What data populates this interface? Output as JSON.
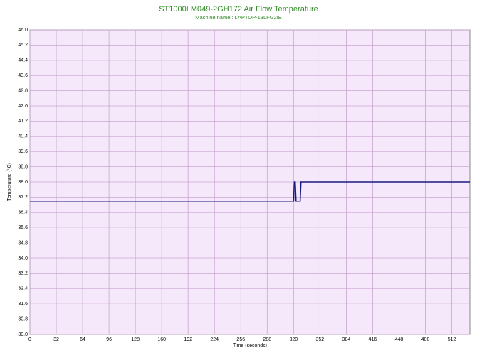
{
  "chart_data": {
    "type": "line",
    "title": "ST1000LM049-2GH172 Air Flow Temperature",
    "subtitle": "Machine name : LAPTOP-13LFG2IE",
    "x_label": "Time (seconds)",
    "y_label": "Temperature (°C)",
    "x": [
      0,
      320,
      321,
      322,
      323,
      328,
      329,
      534
    ],
    "series": [
      {
        "name": "Air Flow Temperature",
        "color": "#1a1a80",
        "values": [
          37.0,
          37.0,
          38.0,
          38.0,
          37.0,
          37.0,
          38.0,
          38.0
        ]
      }
    ],
    "xlim": [
      0,
      534
    ],
    "xticks": [
      0,
      32,
      64,
      96,
      128,
      160,
      192,
      224,
      256,
      288,
      320,
      352,
      384,
      416,
      448,
      480,
      512
    ],
    "ylim": [
      30,
      46
    ],
    "yticks": [
      {
        "value": 30,
        "label": "30.0"
      },
      {
        "value": 30.8,
        "label": "30.8"
      },
      {
        "value": 31.6,
        "label": "31.6"
      },
      {
        "value": 32.4,
        "label": "32.4"
      },
      {
        "value": 33.2,
        "label": "33.2"
      },
      {
        "value": 34,
        "label": "34.0"
      },
      {
        "value": 34.8,
        "label": "34.8"
      },
      {
        "value": 35.6,
        "label": "35.6"
      },
      {
        "value": 36.4,
        "label": "36.4"
      },
      {
        "value": 37.2,
        "label": "37.2"
      },
      {
        "value": 38,
        "label": "38.0"
      },
      {
        "value": 38.8,
        "label": "38.8"
      },
      {
        "value": 39.6,
        "label": "39.6"
      },
      {
        "value": 40.4,
        "label": "40.4"
      },
      {
        "value": 41.2,
        "label": "41.2"
      },
      {
        "value": 42,
        "label": "42.0"
      },
      {
        "value": 42.8,
        "label": "42.8"
      },
      {
        "value": 43.6,
        "label": "43.6"
      },
      {
        "value": 44.4,
        "label": "44.4"
      },
      {
        "value": 45.2,
        "label": "45.2"
      },
      {
        "value": 46,
        "label": "46.0"
      }
    ],
    "grid": true,
    "plot_background": "#f6e8fb"
  }
}
